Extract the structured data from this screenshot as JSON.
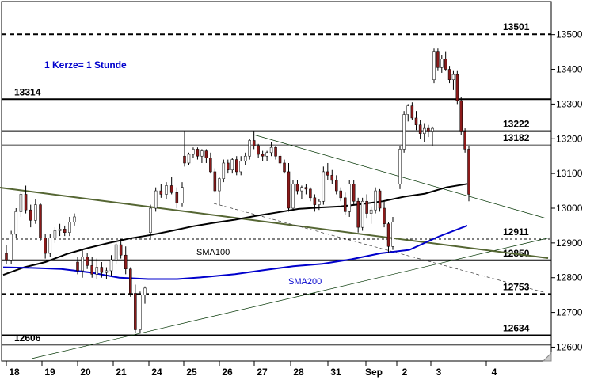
{
  "chart_data": {
    "type": "candlestick",
    "note": "1 Kerze= 1 Stunde",
    "y_ticks": [
      12600,
      12700,
      12800,
      12900,
      13000,
      13100,
      13200,
      13300,
      13400,
      13500
    ],
    "ylim": [
      12560,
      13595
    ],
    "x_labels": [
      "18",
      "19",
      "20",
      "21",
      "24",
      "25",
      "26",
      "27",
      "28",
      "31",
      "Sep",
      "2",
      "3",
      "4"
    ],
    "levels": [
      {
        "value": 13501,
        "label": "13501",
        "style": "dashed",
        "side": "right"
      },
      {
        "value": 13314,
        "label": "13314",
        "style": "solid",
        "side": "left"
      },
      {
        "value": 13222,
        "label": "13222",
        "style": "solid",
        "side": "right"
      },
      {
        "value": 13182,
        "label": "13182",
        "style": "solid-thin",
        "side": "right"
      },
      {
        "value": 12911,
        "label": "12911",
        "style": "dashed-thin",
        "side": "right"
      },
      {
        "value": 12850,
        "label": "12850",
        "style": "solid",
        "side": "right"
      },
      {
        "value": 12753,
        "label": "12753",
        "style": "dashed",
        "side": "right"
      },
      {
        "value": 12634,
        "label": "12634",
        "style": "solid",
        "side": "right"
      },
      {
        "value": 12606,
        "label": "12606",
        "style": "solid-thin",
        "side": "left"
      }
    ],
    "sma100": {
      "name": "SMA100",
      "color": "#000000",
      "values": [
        12808,
        12830,
        12845,
        12868,
        12885,
        12900,
        12913,
        12923,
        12935,
        12948,
        12958,
        12967,
        12978,
        12988,
        12998,
        13002,
        13005,
        13012,
        13020,
        13033,
        13042,
        13060,
        13070
      ]
    },
    "sma200": {
      "name": "SMA200",
      "color": "#0000cc",
      "values": [
        12830,
        12828,
        12825,
        12815,
        12800,
        12796,
        12796,
        12802,
        12810,
        12822,
        12833,
        12840,
        12853,
        12870,
        12880,
        12918,
        12950
      ]
    },
    "candles": [
      [
        12870,
        12895,
        12840,
        12850
      ],
      [
        12850,
        12935,
        12840,
        12925
      ],
      [
        12925,
        13000,
        12915,
        12990
      ],
      [
        12990,
        13050,
        12975,
        13040
      ],
      [
        13040,
        13065,
        12985,
        12995
      ],
      [
        12995,
        13010,
        12945,
        12965
      ],
      [
        12965,
        13025,
        12955,
        13010
      ],
      [
        13010,
        13015,
        12905,
        12915
      ],
      [
        12915,
        12925,
        12855,
        12870
      ],
      [
        12870,
        12925,
        12860,
        12915
      ],
      [
        12915,
        12945,
        12900,
        12935
      ],
      [
        12935,
        12955,
        12920,
        12940
      ],
      [
        12940,
        12950,
        12920,
        12930
      ],
      [
        12930,
        12975,
        12920,
        12960
      ],
      [
        12960,
        12985,
        12950,
        12975
      ],
      [
        12845,
        12860,
        12810,
        12820
      ],
      [
        12820,
        12880,
        12800,
        12860
      ],
      [
        12860,
        12870,
        12825,
        12835
      ],
      [
        12835,
        12860,
        12800,
        12810
      ],
      [
        12810,
        12855,
        12795,
        12830
      ],
      [
        12830,
        12845,
        12800,
        12815
      ],
      [
        12815,
        12830,
        12795,
        12820
      ],
      [
        12820,
        12865,
        12805,
        12850
      ],
      [
        12850,
        12905,
        12840,
        12895
      ],
      [
        12895,
        12910,
        12855,
        12865
      ],
      [
        12865,
        12890,
        12810,
        12825
      ],
      [
        12825,
        12830,
        12745,
        12755
      ],
      [
        12755,
        12780,
        12640,
        12650
      ],
      [
        12650,
        12760,
        12640,
        12750
      ],
      [
        12750,
        12775,
        12725,
        12770
      ],
      [
        12930,
        13010,
        12915,
        13000
      ],
      [
        13000,
        13060,
        12990,
        13050
      ],
      [
        13050,
        13070,
        13030,
        13040
      ],
      [
        13040,
        13075,
        13025,
        13065
      ],
      [
        13065,
        13090,
        13040,
        13045
      ],
      [
        13045,
        13060,
        13000,
        13015
      ],
      [
        13015,
        13075,
        13005,
        13060
      ],
      [
        13150,
        13222,
        13120,
        13130
      ],
      [
        13130,
        13160,
        13125,
        13155
      ],
      [
        13155,
        13175,
        13145,
        13170
      ],
      [
        13170,
        13175,
        13140,
        13150
      ],
      [
        13150,
        13170,
        13130,
        13165
      ],
      [
        13165,
        13170,
        13130,
        13145
      ],
      [
        13145,
        13160,
        13100,
        13105
      ],
      [
        13105,
        13115,
        13045,
        13050
      ],
      [
        13050,
        13090,
        13010,
        13085
      ],
      [
        13085,
        13140,
        13075,
        13130
      ],
      [
        13130,
        13140,
        13100,
        13110
      ],
      [
        13110,
        13145,
        13100,
        13140
      ],
      [
        13140,
        13150,
        13095,
        13105
      ],
      [
        13105,
        13150,
        13095,
        13135
      ],
      [
        13135,
        13160,
        13125,
        13150
      ],
      [
        13150,
        13200,
        13140,
        13195
      ],
      [
        13195,
        13222,
        13170,
        13180
      ],
      [
        13180,
        13185,
        13145,
        13155
      ],
      [
        13155,
        13165,
        13135,
        13150
      ],
      [
        13150,
        13165,
        13135,
        13160
      ],
      [
        13160,
        13190,
        13150,
        13175
      ],
      [
        13175,
        13180,
        13140,
        13150
      ],
      [
        13150,
        13155,
        13120,
        13130
      ],
      [
        13130,
        13140,
        13100,
        13105
      ],
      [
        13105,
        13130,
        12990,
        13000
      ],
      [
        13000,
        13080,
        12995,
        13070
      ],
      [
        13070,
        13080,
        13040,
        13050
      ],
      [
        13050,
        13065,
        13025,
        13060
      ],
      [
        13060,
        13070,
        13040,
        13055
      ],
      [
        13055,
        13060,
        13020,
        13030
      ],
      [
        13030,
        13040,
        12990,
        13010
      ],
      [
        13010,
        13025,
        12995,
        13020
      ],
      [
        13020,
        13120,
        13010,
        13105
      ],
      [
        13105,
        13130,
        13080,
        13095
      ],
      [
        13095,
        13110,
        13070,
        13080
      ],
      [
        13080,
        13095,
        13040,
        13050
      ],
      [
        13050,
        13060,
        13020,
        13030
      ],
      [
        13030,
        13045,
        12980,
        12990
      ],
      [
        12990,
        13080,
        12975,
        13070
      ],
      [
        13070,
        13080,
        13010,
        13020
      ],
      [
        13020,
        13030,
        12930,
        12945
      ],
      [
        12945,
        13030,
        12935,
        13020
      ],
      [
        13020,
        13040,
        12970,
        12985
      ],
      [
        12985,
        13005,
        12955,
        12995
      ],
      [
        12995,
        13060,
        12985,
        13050
      ],
      [
        13050,
        13055,
        12990,
        13000
      ],
      [
        13000,
        13020,
        12945,
        12955
      ],
      [
        12955,
        12960,
        12870,
        12890
      ],
      [
        12890,
        12975,
        12880,
        12960
      ],
      [
        13070,
        13180,
        13055,
        13170
      ],
      [
        13170,
        13280,
        13160,
        13270
      ],
      [
        13270,
        13300,
        13250,
        13295
      ],
      [
        13295,
        13305,
        13255,
        13260
      ],
      [
        13260,
        13280,
        13225,
        13240
      ],
      [
        13240,
        13255,
        13200,
        13215
      ],
      [
        13215,
        13245,
        13190,
        13230
      ],
      [
        13230,
        13240,
        13205,
        13220
      ],
      [
        13220,
        13235,
        13180,
        13230
      ],
      [
        13370,
        13460,
        13360,
        13450
      ],
      [
        13450,
        13460,
        13395,
        13405
      ],
      [
        13405,
        13440,
        13390,
        13430
      ],
      [
        13430,
        13450,
        13395,
        13400
      ],
      [
        13400,
        13410,
        13360,
        13370
      ],
      [
        13370,
        13395,
        13340,
        13385
      ],
      [
        13385,
        13395,
        13300,
        13310
      ],
      [
        13310,
        13320,
        13210,
        13220
      ],
      [
        13220,
        13230,
        13160,
        13170
      ],
      [
        13170,
        13180,
        13020,
        13040
      ]
    ]
  }
}
